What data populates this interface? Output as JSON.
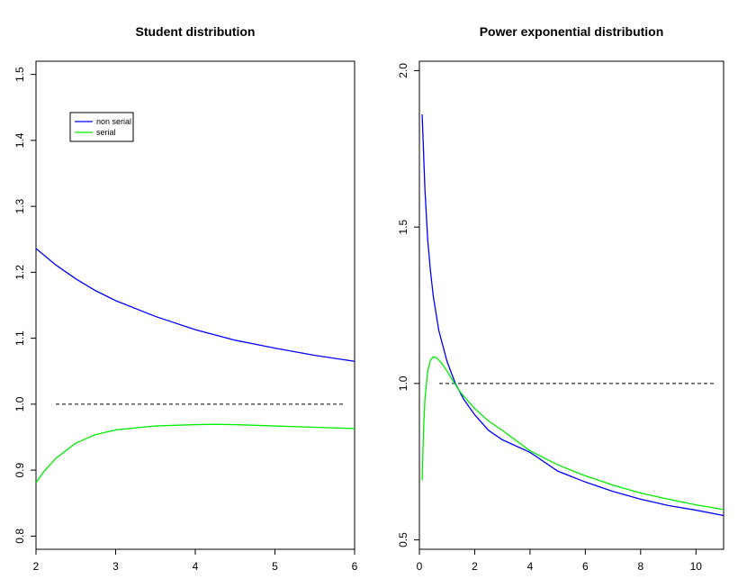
{
  "chart_data": [
    {
      "type": "line",
      "title": "Student distribution",
      "xlabel": "",
      "ylabel": "",
      "xlim": [
        2,
        6
      ],
      "ylim": [
        0.78,
        1.52
      ],
      "xticks": [
        2,
        3,
        4,
        5,
        6
      ],
      "yticks": [
        0.8,
        0.9,
        1.0,
        1.1,
        1.2,
        1.3,
        1.4,
        1.5
      ],
      "grid": false,
      "legend": {
        "placement": "top-left",
        "entries": [
          "non serial",
          "serial"
        ]
      },
      "reference_line": {
        "y": 1.0,
        "style": "dashed",
        "color": "#000000"
      },
      "series": [
        {
          "name": "non serial",
          "color": "#0000ff",
          "x": [
            2.0,
            2.25,
            2.5,
            2.75,
            3.0,
            3.5,
            4.0,
            4.5,
            5.0,
            5.5,
            6.0
          ],
          "y": [
            1.236,
            1.211,
            1.19,
            1.172,
            1.157,
            1.133,
            1.113,
            1.097,
            1.085,
            1.074,
            1.065
          ]
        },
        {
          "name": "serial",
          "color": "#00ee00",
          "x": [
            2.0,
            2.1,
            2.25,
            2.5,
            2.75,
            3.0,
            3.5,
            4.0,
            4.25,
            4.5,
            5.0,
            5.5,
            6.0
          ],
          "y": [
            0.881,
            0.898,
            0.918,
            0.941,
            0.954,
            0.961,
            0.967,
            0.969,
            0.9695,
            0.969,
            0.967,
            0.965,
            0.963
          ]
        }
      ]
    },
    {
      "type": "line",
      "title": "Power exponential distribution",
      "xlabel": "",
      "ylabel": "",
      "xlim": [
        0,
        11
      ],
      "ylim": [
        0.47,
        2.03
      ],
      "xticks": [
        0,
        2,
        4,
        6,
        8,
        10
      ],
      "yticks": [
        0.5,
        1.0,
        1.5,
        2.0
      ],
      "grid": false,
      "reference_line": {
        "y": 1.0,
        "style": "dashed",
        "color": "#000000"
      },
      "series": [
        {
          "name": "non serial",
          "color": "#0000ff",
          "x": [
            0.1,
            0.2,
            0.3,
            0.4,
            0.5,
            0.7,
            1.0,
            1.3,
            1.6,
            2.0,
            2.5,
            3.0,
            3.5,
            4.0,
            5.0,
            6.0,
            7.0,
            8.0,
            9.0,
            10.0,
            11.0
          ],
          "y": [
            1.86,
            1.62,
            1.46,
            1.36,
            1.28,
            1.17,
            1.07,
            1.0,
            0.95,
            0.9,
            0.85,
            0.82,
            0.8,
            0.78,
            0.72,
            0.685,
            0.655,
            0.63,
            0.61,
            0.595,
            0.578
          ]
        },
        {
          "name": "serial",
          "color": "#00ee00",
          "x": [
            0.1,
            0.15,
            0.2,
            0.3,
            0.4,
            0.5,
            0.6,
            0.7,
            0.8,
            1.0,
            1.2,
            1.5,
            2.0,
            2.5,
            3.0,
            4.0,
            5.0,
            6.0,
            7.0,
            8.0,
            9.0,
            10.0,
            11.0
          ],
          "y": [
            0.69,
            0.85,
            0.95,
            1.04,
            1.075,
            1.085,
            1.083,
            1.075,
            1.065,
            1.04,
            1.01,
            0.97,
            0.92,
            0.88,
            0.85,
            0.785,
            0.74,
            0.705,
            0.675,
            0.65,
            0.63,
            0.612,
            0.597
          ]
        }
      ]
    }
  ]
}
